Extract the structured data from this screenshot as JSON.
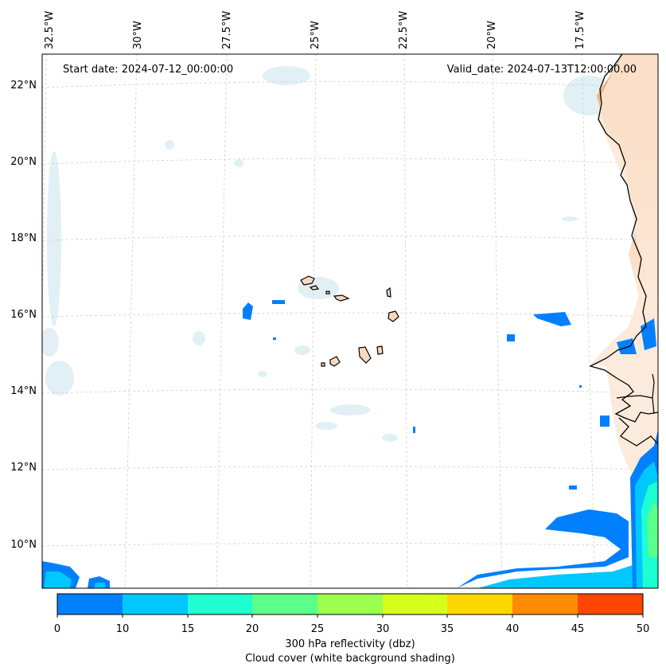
{
  "map": {
    "start_date_text": "Start date: 2024-07-12_00:00:00",
    "valid_date_text": "Valid_date: 2024-07-13T12:00:00.00",
    "longitude_labels": [
      "32.5°W",
      "30°W",
      "27.5°W",
      "25°W",
      "22.5°W",
      "20°W",
      "17.5°W"
    ],
    "latitude_labels": [
      "22°N",
      "20°N",
      "18°N",
      "16°N",
      "14°N",
      "12°N",
      "10°N"
    ],
    "gridlines": true,
    "colors": {
      "land_fill": "#f7d9bf",
      "coastline": "#000000",
      "gridline": "#cfcfcf",
      "cloud_shading": "#d7ebf1",
      "dust_shading": "#f2a86a"
    }
  },
  "colorbar": {
    "ticks": [
      "0",
      "10",
      "15",
      "20",
      "25",
      "30",
      "35",
      "40",
      "45",
      "50"
    ],
    "colors": [
      "#0080ff",
      "#00c8ff",
      "#1effd2",
      "#5cff8a",
      "#9cff50",
      "#d6ff1a",
      "#ffd700",
      "#ff8c00",
      "#ff4500"
    ],
    "label_line1": "300 hPa reflectivity (dbz)",
    "label_line2": "Cloud cover (white background shading)"
  }
}
